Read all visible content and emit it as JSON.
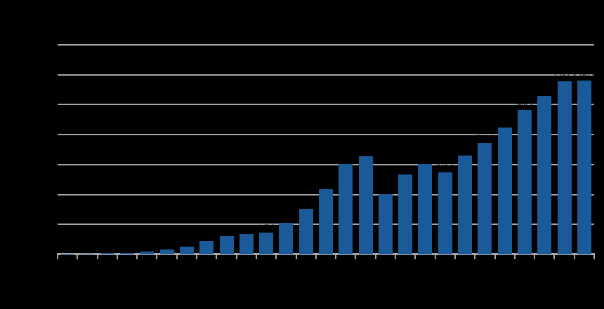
{
  "chart_data": {
    "type": "bar",
    "num_categories": 27,
    "categories_labels_visible": false,
    "axis_text_visible": false,
    "values": [
      2.1,
      6.8,
      9.6,
      8.7,
      19.4,
      33.9,
      50.1,
      87.8,
      123.8,
      134.9,
      147.2,
      212.9,
      302.1,
      437.0,
      604.6,
      654.4,
      402.6,
      534.2,
      606.1,
      546.4,
      661.0,
      742.3,
      847.1,
      966.3,
      1060.4,
      1157.2,
      1161.9
    ],
    "data_labels": [
      "2.1",
      "6.8",
      "9.6",
      "8.7",
      "19.4",
      "33.9",
      "50.1",
      "87.8",
      "123.8",
      "134.9",
      "147.2",
      "212.9",
      "302.1",
      "437.0",
      "604.6",
      "654.4",
      "402.6",
      "534.2",
      "606.1",
      "546.4",
      "661.0",
      "742.3",
      "847.1",
      "966.3",
      "1,060.4",
      "1,157.2",
      "1,161.9"
    ],
    "ylim": [
      0,
      1400
    ],
    "gridline_step": 200,
    "grid": true,
    "legend": false
  },
  "colors": {
    "background": "#000000",
    "bar": "#1B5A98",
    "gridline": "#A7A7A7",
    "axis": "#A7A7A7",
    "data_label": "#000000"
  }
}
